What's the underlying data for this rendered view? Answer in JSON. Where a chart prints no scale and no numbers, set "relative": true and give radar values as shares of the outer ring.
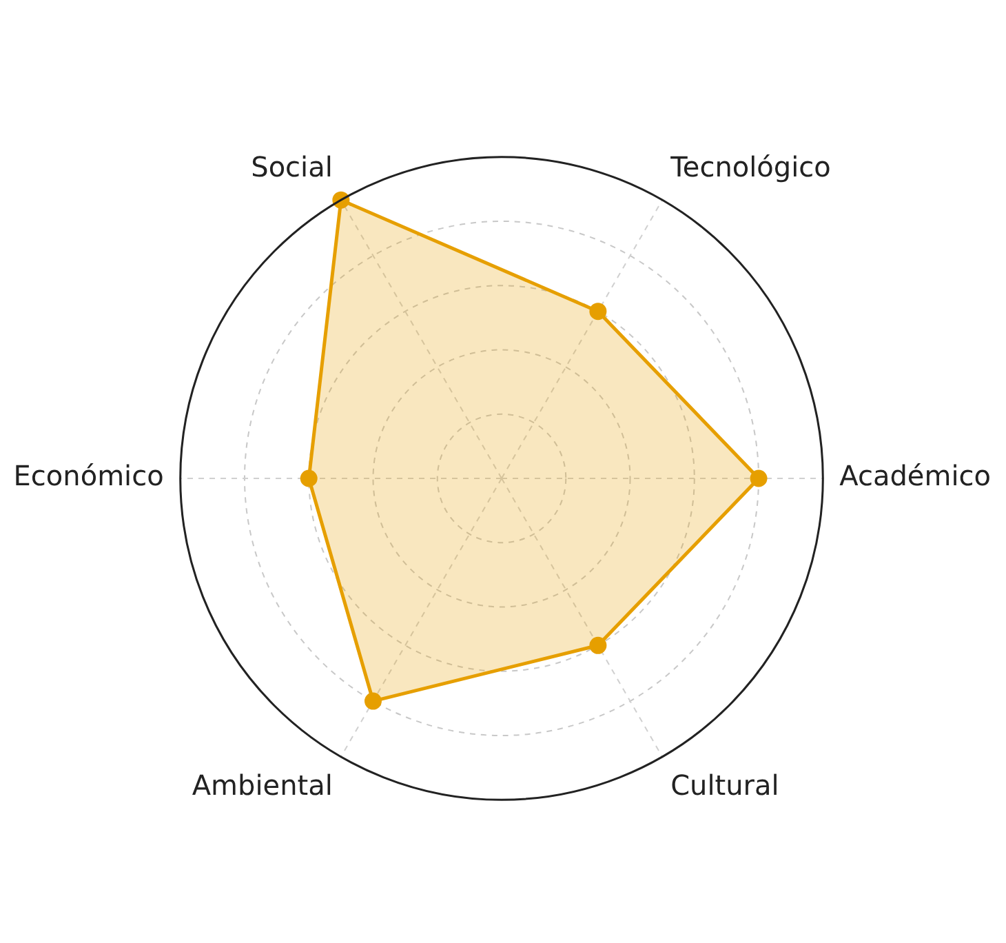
{
  "chart_data": {
    "type": "radar",
    "relative": true,
    "categories": [
      "Tecnológico",
      "Académico",
      "Cultural",
      "Ambiental",
      "Económico",
      "Social"
    ],
    "series": [
      {
        "color": "#e69f00",
        "values": [
          0.6,
          0.8,
          0.6,
          0.8,
          0.6,
          1
        ]
      }
    ],
    "grid": true,
    "legend": false,
    "marker": "circle",
    "line_style": "solid"
  }
}
